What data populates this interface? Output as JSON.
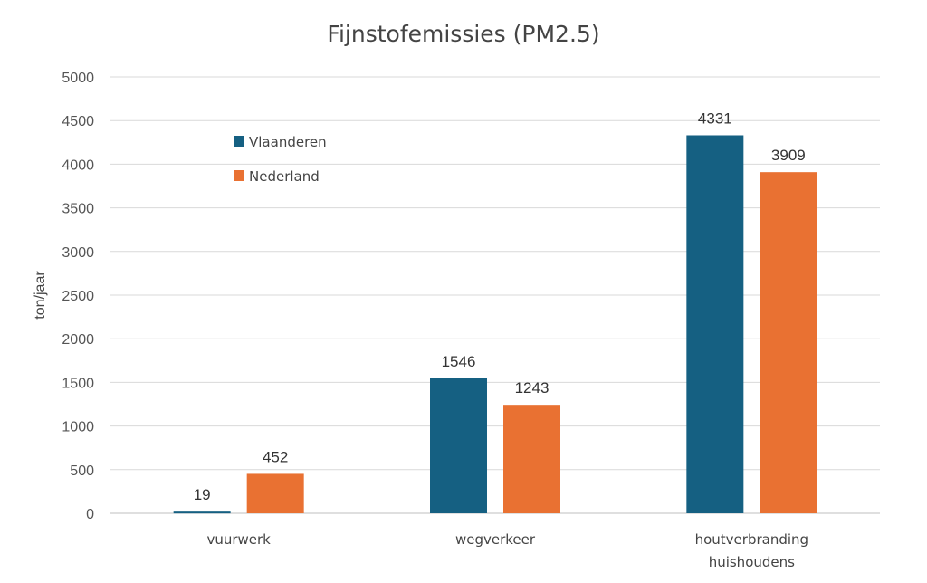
{
  "chart_data": {
    "type": "bar",
    "title": "Fijnstofemissies (PM2.5)",
    "ylabel": "ton/jaar",
    "xlabel": "",
    "categories": [
      [
        "vuurwerk"
      ],
      [
        "wegverkeer"
      ],
      [
        "houtverbranding",
        "huishoudens"
      ]
    ],
    "series": [
      {
        "name": "Vlaanderen",
        "values": [
          19,
          1546,
          4331
        ],
        "color": "#156082"
      },
      {
        "name": "Nederland",
        "values": [
          452,
          1243,
          3909
        ],
        "color": "#E97132"
      }
    ],
    "ylim": [
      0,
      5000
    ],
    "ytick_step": 500,
    "grid": true,
    "legend_position": "top-left"
  }
}
